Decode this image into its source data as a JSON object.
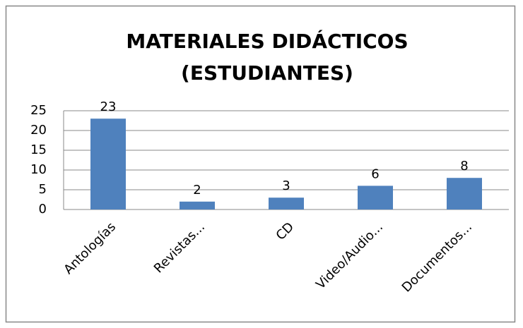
{
  "chart_data": {
    "type": "bar",
    "title": [
      "MATERIALES DIDÁCTICOS",
      "(ESTUDIANTES)"
    ],
    "categories": [
      "Antologías",
      "Revistas...",
      "CD",
      "Video/Audio...",
      "Documentos..."
    ],
    "values": [
      23,
      2,
      3,
      6,
      8
    ],
    "color": "#4f81bd",
    "ylim": [
      0,
      25
    ],
    "yticks": [
      0,
      5,
      10,
      15,
      20,
      25
    ],
    "grid": true
  }
}
